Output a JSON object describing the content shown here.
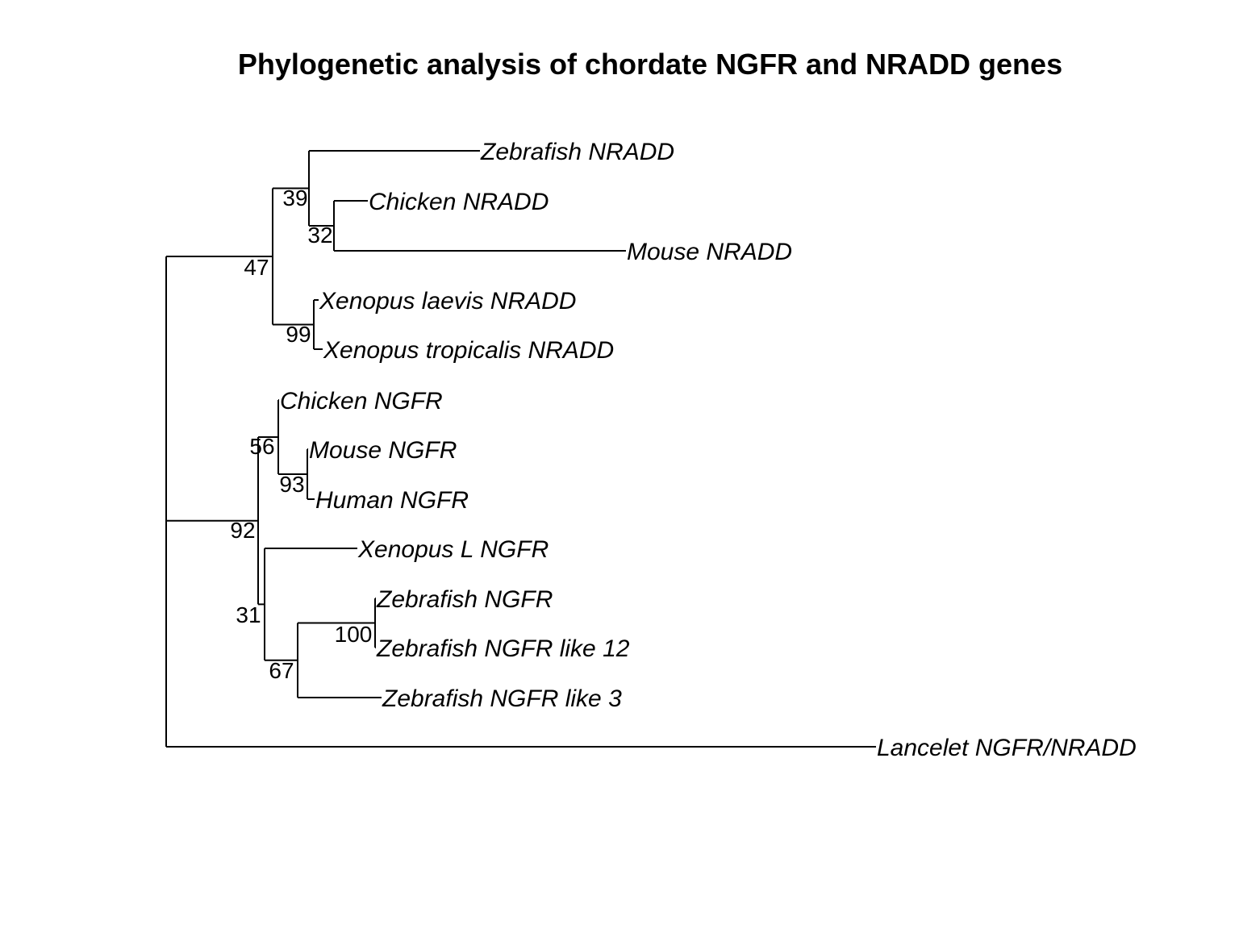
{
  "title": "Phylogenetic analysis of chordate NGFR and NRADD genes",
  "tree": {
    "tips": [
      {
        "id": "t1",
        "label": "Zebrafish NRADD"
      },
      {
        "id": "t2",
        "label": "Chicken NRADD"
      },
      {
        "id": "t3",
        "label": "Mouse NRADD"
      },
      {
        "id": "t4",
        "label": "Xenopus laevis NRADD"
      },
      {
        "id": "t5",
        "label": "Xenopus tropicalis NRADD"
      },
      {
        "id": "t6",
        "label": "Chicken NGFR"
      },
      {
        "id": "t7",
        "label": "Mouse NGFR"
      },
      {
        "id": "t8",
        "label": "Human NGFR"
      },
      {
        "id": "t9",
        "label": "Xenopus L NGFR"
      },
      {
        "id": "t10",
        "label": "Zebrafish NGFR"
      },
      {
        "id": "t11",
        "label": "Zebrafish NGFR like 12"
      },
      {
        "id": "t12",
        "label": "Zebrafish NGFR like 3"
      },
      {
        "id": "t13",
        "label": "Lancelet NGFR/NRADD"
      }
    ],
    "bootstrap": [
      {
        "node": "n32",
        "value": "32"
      },
      {
        "node": "n39",
        "value": "39"
      },
      {
        "node": "n99",
        "value": "99"
      },
      {
        "node": "n47",
        "value": "47"
      },
      {
        "node": "n93",
        "value": "93"
      },
      {
        "node": "n56",
        "value": "56"
      },
      {
        "node": "n100",
        "value": "100"
      },
      {
        "node": "n67",
        "value": "67"
      },
      {
        "node": "n31",
        "value": "31"
      },
      {
        "node": "n92",
        "value": "92"
      }
    ],
    "edges": [
      {
        "parent": "n39",
        "child": "t1"
      },
      {
        "parent": "n32",
        "child": "t2"
      },
      {
        "parent": "n32",
        "child": "t3"
      },
      {
        "parent": "n39",
        "child": "n32"
      },
      {
        "parent": "n47",
        "child": "n39"
      },
      {
        "parent": "n99",
        "child": "t4"
      },
      {
        "parent": "n99",
        "child": "t5"
      },
      {
        "parent": "n47",
        "child": "n99"
      },
      {
        "parent": "root",
        "child": "n47"
      },
      {
        "parent": "n56",
        "child": "t6"
      },
      {
        "parent": "n93",
        "child": "t7"
      },
      {
        "parent": "n93",
        "child": "t8"
      },
      {
        "parent": "n56",
        "child": "n93"
      },
      {
        "parent": "n92",
        "child": "n56"
      },
      {
        "parent": "n31",
        "child": "t9"
      },
      {
        "parent": "n100",
        "child": "t10"
      },
      {
        "parent": "n100",
        "child": "t11"
      },
      {
        "parent": "n67",
        "child": "n100"
      },
      {
        "parent": "n67",
        "child": "t12"
      },
      {
        "parent": "n31",
        "child": "n67"
      },
      {
        "parent": "n92",
        "child": "n31"
      },
      {
        "parent": "root",
        "child": "n92"
      },
      {
        "parent": "root",
        "child": "t13"
      }
    ]
  }
}
